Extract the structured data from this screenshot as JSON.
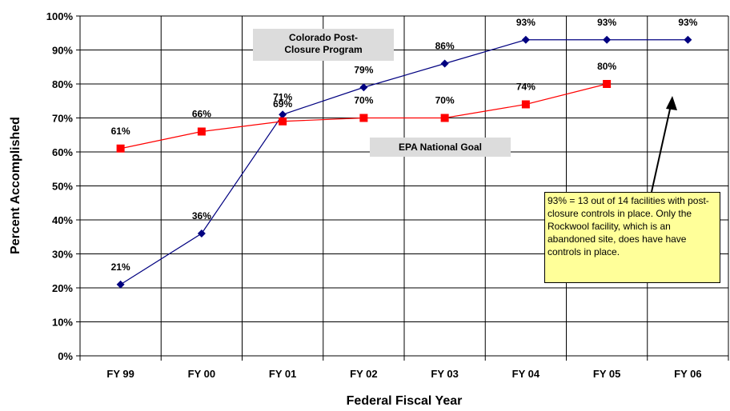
{
  "chart_data": {
    "type": "line",
    "categories": [
      "FY 99",
      "FY 00",
      "FY 01",
      "FY 02",
      "FY 03",
      "FY 04",
      "FY 05",
      "FY 06"
    ],
    "series": [
      {
        "name": "Colorado Post-Closure Program",
        "color": "#000080",
        "marker": "diamond",
        "values": [
          21,
          36,
          71,
          79,
          86,
          93,
          93,
          93
        ],
        "labels": [
          "21%",
          "36%",
          "71%",
          "79%",
          "86%",
          "93%",
          "93%",
          "93%"
        ]
      },
      {
        "name": "EPA National Goal",
        "color": "#ff0000",
        "marker": "square",
        "values": [
          61,
          66,
          69,
          70,
          70,
          74,
          80,
          null
        ],
        "labels": [
          "61%",
          "66%",
          "69%",
          "70%",
          "70%",
          "74%",
          "80%",
          null
        ]
      }
    ],
    "ylim": [
      0,
      100
    ],
    "yticks": [
      "0%",
      "10%",
      "20%",
      "30%",
      "40%",
      "50%",
      "60%",
      "70%",
      "80%",
      "90%",
      "100%"
    ],
    "xlabel": "Federal Fiscal Year",
    "ylabel": "Percent Accomplished",
    "grid": true
  },
  "callouts": {
    "colorado_line1": "Colorado Post-",
    "colorado_line2": "Closure Program",
    "epa": "EPA National Goal"
  },
  "note": {
    "text": "93% = 13 out of 14 facilities with post-closure controls in place.  Only the Rockwool facility, which is an abandoned site, does have have controls in place."
  }
}
